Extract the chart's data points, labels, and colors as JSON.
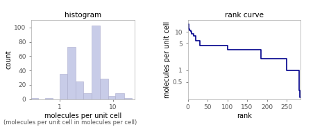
{
  "hist_title": "histogram",
  "hist_xlabel": "molecules per unit cell",
  "hist_ylabel": "count",
  "hist_bar_edges": [
    0.3,
    0.4,
    0.55,
    0.75,
    1.0,
    1.4,
    2.0,
    2.8,
    4.0,
    5.6,
    8.0,
    11.0,
    16.0,
    22.0
  ],
  "hist_bar_heights": [
    1,
    0,
    1,
    0,
    35,
    73,
    25,
    8,
    103,
    28,
    4,
    8,
    1
  ],
  "hist_bar_color": "#c8cce8",
  "hist_bar_edgecolor": "#aaaacc",
  "hist_xlim_log": [
    0.3,
    25
  ],
  "hist_ylim": [
    0,
    110
  ],
  "hist_yticks": [
    0,
    20,
    40,
    60,
    80,
    100
  ],
  "hist_xticks": [
    1,
    10
  ],
  "hist_xtick_labels": [
    "1",
    "10"
  ],
  "rank_title": "rank curve",
  "rank_xlabel": "rank",
  "rank_ylabel": "molecules per unit cell",
  "rank_color": "#00008b",
  "rank_x": [
    1,
    2,
    3,
    5,
    7,
    10,
    15,
    20,
    30,
    40,
    50,
    100,
    150,
    160,
    185,
    190,
    230,
    250,
    265,
    270,
    275,
    280,
    281,
    282,
    283,
    284,
    285
  ],
  "rank_y": [
    16,
    14,
    12,
    11,
    10,
    9,
    8,
    6,
    4.5,
    4.5,
    4.5,
    3.5,
    3.5,
    3.5,
    2,
    2,
    2,
    1,
    1,
    1,
    1,
    1,
    0.4,
    0.3,
    0.25,
    0.2,
    0.2
  ],
  "rank_xlim": [
    0,
    285
  ],
  "rank_ylim_log": [
    0.18,
    20
  ],
  "rank_xticks": [
    0,
    50,
    100,
    150,
    200,
    250
  ],
  "rank_yticks": [
    0.5,
    1,
    5,
    10
  ],
  "rank_ytick_labels": [
    "0.5",
    "1",
    "5",
    "10"
  ],
  "subtitle": "(molecules per unit cell in molecules per cell)",
  "background_color": "#ffffff",
  "title_fontsize": 7.5,
  "label_fontsize": 7,
  "tick_fontsize": 6.5
}
